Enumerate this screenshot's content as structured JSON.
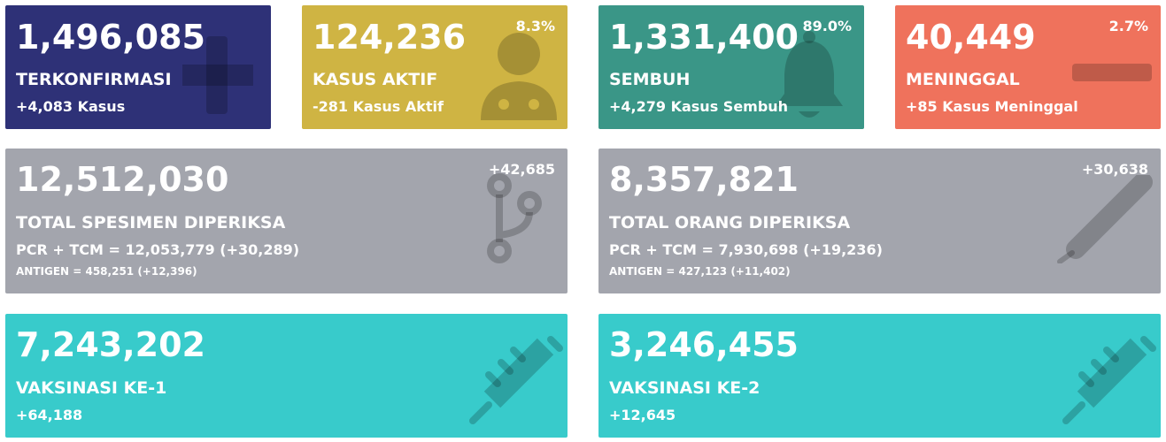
{
  "cards": [
    {
      "value": "1,496,085",
      "label": "TERKONFIRMASI",
      "detail": "+4,083 Kasus"
    },
    {
      "value": "124,236",
      "percent": "8.3%",
      "label": "KASUS AKTIF",
      "detail": "-281 Kasus Aktif"
    },
    {
      "value": "1,331,400",
      "percent": "89.0%",
      "label": "SEMBUH",
      "detail": "+4,279 Kasus Sembuh"
    },
    {
      "value": "40,449",
      "percent": "2.7%",
      "label": "MENINGGAL",
      "detail": "+85 Kasus Meninggal"
    }
  ],
  "test_cards": [
    {
      "value": "12,512,030",
      "change": "+42,685",
      "label": "TOTAL SPESIMEN DIPERIKSA",
      "detail": "PCR + TCM = 12,053,779 (+30,289)",
      "antigen": "ANTIGEN = 458,251 (+12,396)"
    },
    {
      "value": "8,357,821",
      "change": "+30,638",
      "label": "TOTAL ORANG DIPERIKSA",
      "detail": "PCR + TCM = 7,930,698 (+19,236)",
      "antigen": "ANTIGEN = 427,123 (+11,402)"
    }
  ],
  "vaccine_cards": [
    {
      "value": "7,243,202",
      "label": "VAKSINASI KE-1",
      "detail": "+64,188"
    },
    {
      "value": "3,246,455",
      "label": "VAKSINASI KE-2",
      "detail": "+12,645"
    }
  ]
}
